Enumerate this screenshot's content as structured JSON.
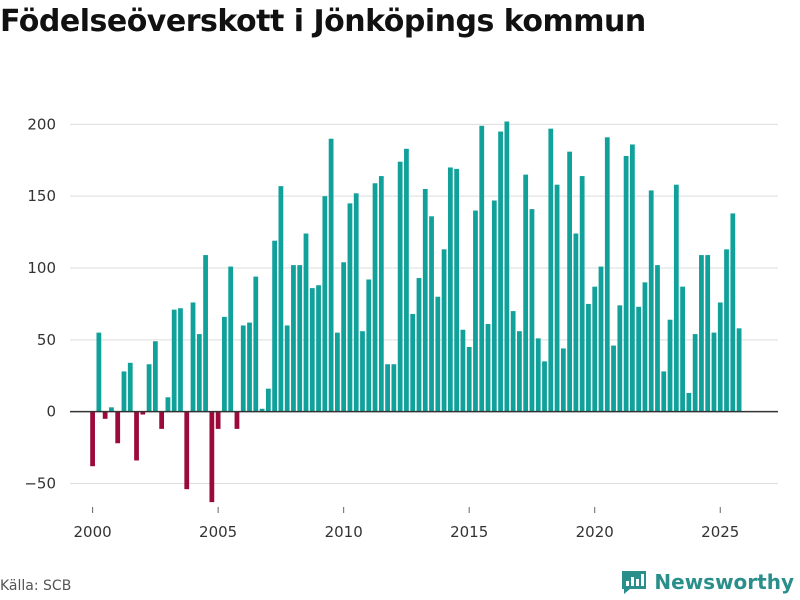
{
  "chart_data": {
    "type": "bar",
    "title": "Födelseöverskott i Jönköpings kommun",
    "xlabel": "",
    "ylabel": "",
    "x_ticks": [
      "2000",
      "2005",
      "2010",
      "2015",
      "2020",
      "2025"
    ],
    "y_ticks": [
      200,
      150,
      100,
      50,
      0,
      -50
    ],
    "ylim": [
      -65,
      210
    ],
    "xlim": [
      1999.1,
      2027.3
    ],
    "grid": true,
    "positive_color": "#10a19b",
    "negative_color": "#9c0a3c",
    "series": [
      {
        "name": "Födelseöverskott",
        "start": 2000.0,
        "step": 0.25,
        "values": [
          -38,
          55,
          -5,
          3,
          -22,
          28,
          34,
          -34,
          -2,
          33,
          49,
          -12,
          10,
          71,
          72,
          -54,
          76,
          54,
          109,
          -63,
          -12,
          66,
          101,
          -12,
          60,
          62,
          94,
          2,
          16,
          119,
          157,
          60,
          102,
          102,
          124,
          86,
          88,
          150,
          190,
          55,
          104,
          145,
          152,
          56,
          92,
          159,
          164,
          33,
          33,
          174,
          183,
          68,
          93,
          155,
          136,
          80,
          113,
          170,
          169,
          57,
          45,
          140,
          199,
          61,
          147,
          195,
          202,
          70,
          56,
          165,
          141,
          51,
          35,
          197,
          158,
          44,
          181,
          124,
          164,
          75,
          87,
          101,
          191,
          46,
          74,
          178,
          186,
          73,
          90,
          154,
          102,
          28,
          64,
          158,
          87,
          13,
          54,
          109,
          109,
          55,
          76,
          113,
          138,
          58
        ]
      }
    ]
  },
  "footer": {
    "source": "Källa: SCB",
    "brand": "Newsworthy"
  }
}
